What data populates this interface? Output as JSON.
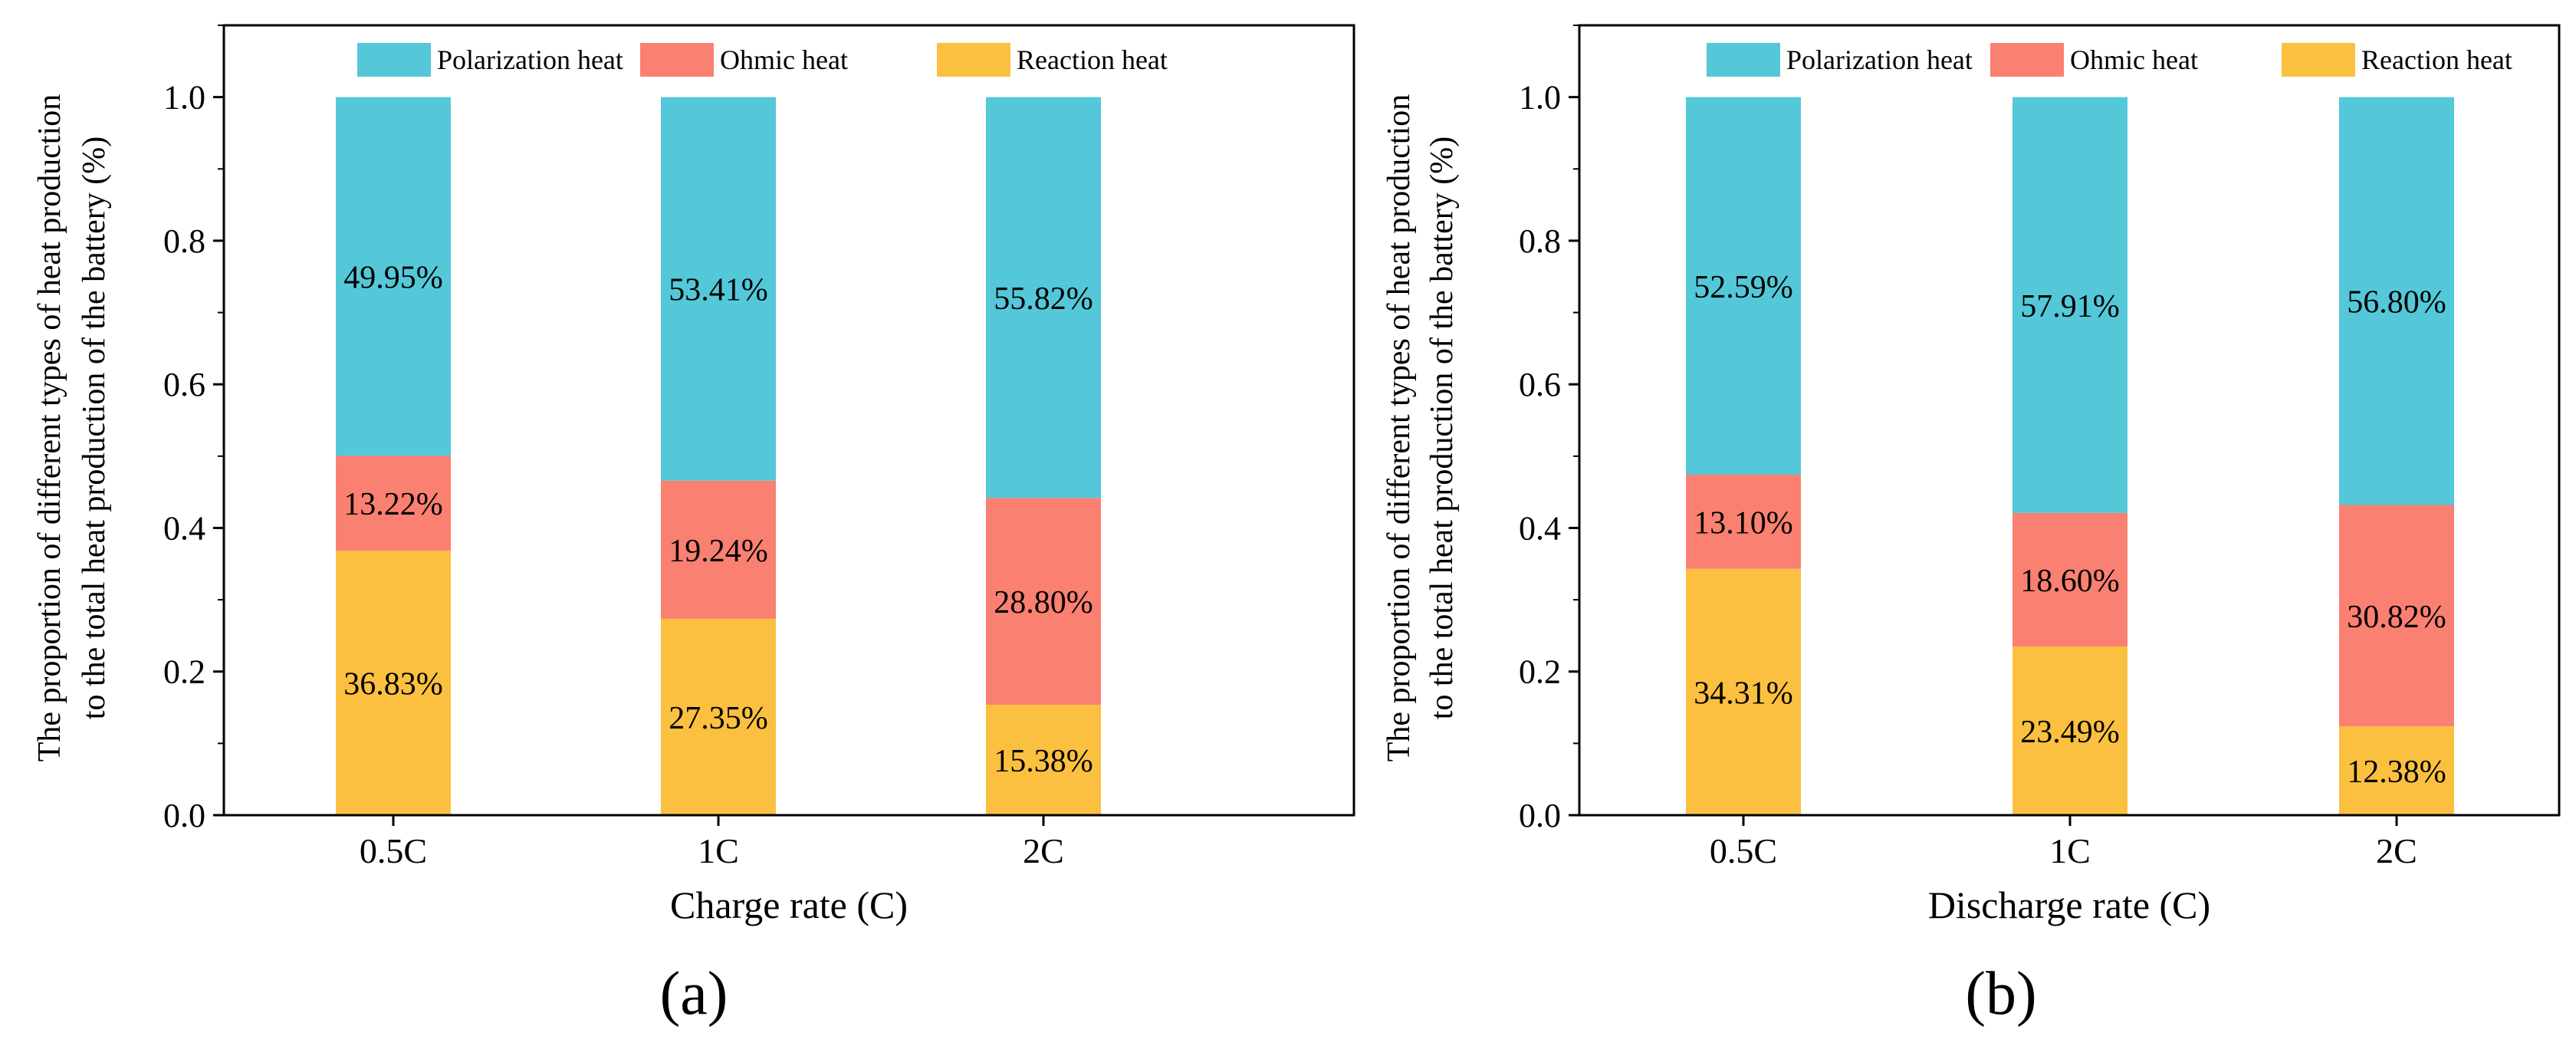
{
  "colors": {
    "polarization": "#54C8D8",
    "ohmic": "#FA8072",
    "reaction": "#FCC040",
    "axis": "#000000"
  },
  "chart_data": [
    {
      "type": "bar",
      "stacked": true,
      "panel_label": "(a)",
      "xlabel": "Charge rate (C)",
      "ylabel_line1": "The proportion of different types of heat production",
      "ylabel_line2": "to the total heat production of the battery (%)",
      "ylim": [
        0,
        1.1
      ],
      "yticks": [
        "0.0",
        "0.2",
        "0.4",
        "0.6",
        "0.8",
        "1.0"
      ],
      "categories": [
        "0.5C",
        "1C",
        "2C"
      ],
      "legend": [
        "Polarization heat",
        "Ohmic heat",
        "Reaction heat"
      ],
      "legend_position": "top-center",
      "series": [
        {
          "name": "Reaction heat",
          "key": "reaction",
          "values": [
            0.3683,
            0.2735,
            0.1538
          ],
          "labels": [
            "36.83%",
            "27.35%",
            "15.38%"
          ]
        },
        {
          "name": "Ohmic heat",
          "key": "ohmic",
          "values": [
            0.1322,
            0.1924,
            0.288
          ],
          "labels": [
            "13.22%",
            "19.24%",
            "28.80%"
          ]
        },
        {
          "name": "Polarization heat",
          "key": "polarization",
          "values": [
            0.4995,
            0.5341,
            0.5582
          ],
          "labels": [
            "49.95%",
            "53.41%",
            "55.82%"
          ]
        }
      ]
    },
    {
      "type": "bar",
      "stacked": true,
      "panel_label": "(b)",
      "xlabel": "Discharge rate (C)",
      "ylabel_line1": "The proportion of different types of heat production",
      "ylabel_line2": "to the total heat production of the battery (%)",
      "ylim": [
        0,
        1.1
      ],
      "yticks": [
        "0.0",
        "0.2",
        "0.4",
        "0.6",
        "0.8",
        "1.0"
      ],
      "categories": [
        "0.5C",
        "1C",
        "2C"
      ],
      "legend": [
        "Polarization heat",
        "Ohmic heat",
        "Reaction heat"
      ],
      "legend_position": "top-center",
      "series": [
        {
          "name": "Reaction heat",
          "key": "reaction",
          "values": [
            0.3431,
            0.2349,
            0.1238
          ],
          "labels": [
            "34.31%",
            "23.49%",
            "12.38%"
          ]
        },
        {
          "name": "Ohmic heat",
          "key": "ohmic",
          "values": [
            0.131,
            0.186,
            0.3082
          ],
          "labels": [
            "13.10%",
            "18.60%",
            "30.82%"
          ]
        },
        {
          "name": "Polarization heat",
          "key": "polarization",
          "values": [
            0.5259,
            0.5791,
            0.568
          ],
          "labels": [
            "52.59%",
            "57.91%",
            "56.80%"
          ]
        }
      ]
    }
  ]
}
